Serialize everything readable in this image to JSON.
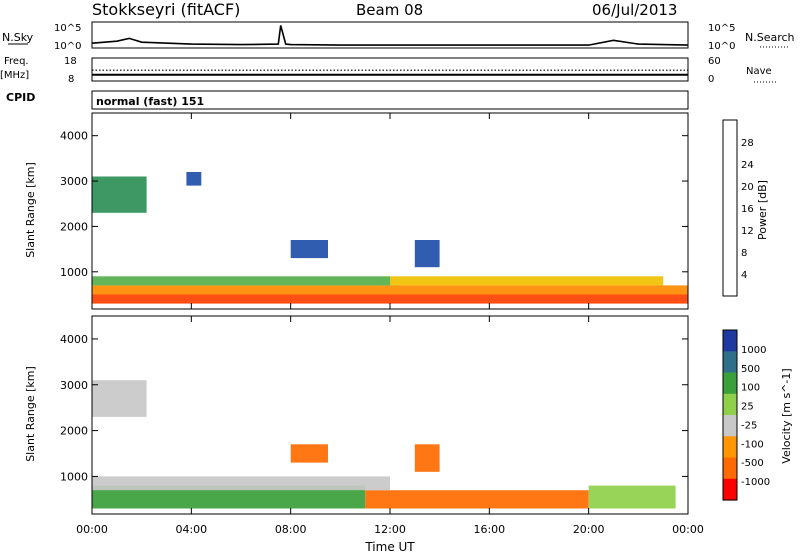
{
  "header": {
    "station": "Stokkseyri (fitACF)",
    "beam": "Beam 08",
    "date": "06/Jul/2013"
  },
  "nsky_panel": {
    "left_label": "N.Sky",
    "left_ticks": [
      "10^5",
      "10^0"
    ],
    "right_ticks": [
      "10^5",
      "10^0"
    ],
    "right_label": "N.Search"
  },
  "freq_panel": {
    "left_label_top": "Freq.",
    "left_label_unit": "[MHz]",
    "left_ticks": [
      "18",
      "8"
    ],
    "right_ticks": [
      "60",
      "0"
    ],
    "right_label": "Nave"
  },
  "cpid_panel": {
    "label": "CPID",
    "mode_text": "normal (fast) 151"
  },
  "x_axis": {
    "label": "Time UT",
    "tick_labels": [
      "00:00",
      "04:00",
      "08:00",
      "12:00",
      "16:00",
      "20:00",
      "00:00"
    ]
  },
  "colors": {
    "power": [
      "#0000ff",
      "#1f4faa",
      "#2e8f57",
      "#55b04a",
      "#8ad034",
      "#f0c000",
      "#ff8a00",
      "#ff4000",
      "#ff0000"
    ],
    "velocity": [
      "#ff0000",
      "#ff6a00",
      "#ff9500",
      "#c8c8c8",
      "#8fd04a",
      "#3aa03a",
      "#2e6f8a",
      "#1e3aa0"
    ]
  },
  "chart_data": [
    {
      "type": "line",
      "title": "N.Sky / N.Search",
      "x": [
        0,
        1,
        1.5,
        2,
        4,
        6,
        7.5,
        7.6,
        7.8,
        8,
        10,
        12,
        16,
        20,
        21,
        22,
        24
      ],
      "y_log10": [
        0.8,
        1.2,
        1.8,
        1.0,
        0.6,
        0.5,
        0.6,
        4.5,
        0.6,
        0.5,
        0.4,
        0.4,
        0.4,
        0.4,
        1.4,
        0.6,
        0.4
      ],
      "ylim_log10": [
        0,
        5
      ]
    },
    {
      "type": "line",
      "title": "Freq / Nave",
      "series": [
        {
          "name": "Freq.",
          "x": [
            0,
            24
          ],
          "values": [
            10.5,
            10.5
          ]
        },
        {
          "name": "Nave",
          "x": [
            0,
            24
          ],
          "values": [
            28,
            28
          ]
        }
      ],
      "ylim_freq": [
        8,
        18
      ],
      "ylim_nave": [
        0,
        60
      ]
    },
    {
      "type": "heatmap",
      "title": "Power",
      "xlabel": "Time UT",
      "ylabel": "Slant Range [km]",
      "xlim": [
        0,
        24
      ],
      "ylim": [
        180,
        4500
      ],
      "y_ticks": [
        "1000",
        "2000",
        "3000",
        "4000"
      ],
      "colorbar": {
        "label": "Power [dB]",
        "ticks": [
          "4",
          "8",
          "12",
          "16",
          "20",
          "24",
          "28"
        ],
        "range": [
          0,
          32
        ]
      },
      "regions": [
        {
          "t": [
            0,
            24
          ],
          "r": [
            300,
            500
          ],
          "value": 28
        },
        {
          "t": [
            0,
            24
          ],
          "r": [
            500,
            700
          ],
          "value": 22
        },
        {
          "t": [
            0,
            12
          ],
          "r": [
            700,
            900
          ],
          "value": 14
        },
        {
          "t": [
            12,
            23
          ],
          "r": [
            700,
            900
          ],
          "value": 20
        },
        {
          "t": [
            0,
            2.2
          ],
          "r": [
            2300,
            3100
          ],
          "value": 10
        },
        {
          "t": [
            13,
            14
          ],
          "r": [
            1100,
            1700
          ],
          "value": 6
        },
        {
          "t": [
            8,
            9.5
          ],
          "r": [
            1300,
            1700
          ],
          "value": 6
        },
        {
          "t": [
            3.8,
            4.4
          ],
          "r": [
            2900,
            3200
          ],
          "value": 6
        }
      ]
    },
    {
      "type": "heatmap",
      "title": "Velocity",
      "xlabel": "Time UT",
      "ylabel": "Slant Range [km]",
      "xlim": [
        0,
        24
      ],
      "ylim": [
        180,
        4500
      ],
      "y_ticks": [
        "1000",
        "2000",
        "3000",
        "4000"
      ],
      "colorbar": {
        "label": "Velocity [m s^-1]",
        "ticks": [
          "1000",
          "500",
          "100",
          "25",
          "-25",
          "-100",
          "-500",
          "-1000"
        ]
      },
      "regions": [
        {
          "t": [
            0,
            11
          ],
          "r": [
            300,
            800
          ],
          "value": 150
        },
        {
          "t": [
            11,
            20
          ],
          "r": [
            300,
            700
          ],
          "value": -300
        },
        {
          "t": [
            20,
            23.5
          ],
          "r": [
            300,
            800
          ],
          "value": 50
        },
        {
          "t": [
            0,
            12
          ],
          "r": [
            700,
            1000
          ],
          "value": 0
        },
        {
          "t": [
            0,
            2.2
          ],
          "r": [
            2300,
            3100
          ],
          "value": 0
        },
        {
          "t": [
            13,
            14
          ],
          "r": [
            1100,
            1700
          ],
          "value": -200
        },
        {
          "t": [
            8,
            9.5
          ],
          "r": [
            1300,
            1700
          ],
          "value": -150
        }
      ]
    }
  ]
}
